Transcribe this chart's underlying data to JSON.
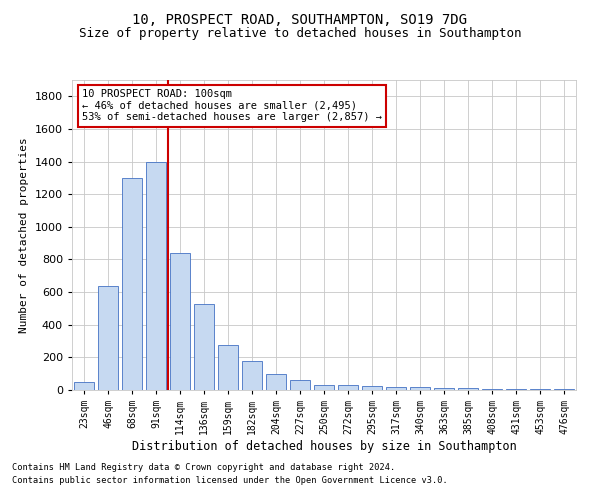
{
  "title_line1": "10, PROSPECT ROAD, SOUTHAMPTON, SO19 7DG",
  "title_line2": "Size of property relative to detached houses in Southampton",
  "xlabel": "Distribution of detached houses by size in Southampton",
  "ylabel": "Number of detached properties",
  "categories": [
    "23sqm",
    "46sqm",
    "68sqm",
    "91sqm",
    "114sqm",
    "136sqm",
    "159sqm",
    "182sqm",
    "204sqm",
    "227sqm",
    "250sqm",
    "272sqm",
    "295sqm",
    "317sqm",
    "340sqm",
    "363sqm",
    "385sqm",
    "408sqm",
    "431sqm",
    "453sqm",
    "476sqm"
  ],
  "values": [
    50,
    640,
    1300,
    1400,
    840,
    525,
    275,
    175,
    100,
    60,
    30,
    30,
    25,
    20,
    20,
    10,
    10,
    5,
    5,
    5,
    5
  ],
  "bar_color": "#c6d9f1",
  "bar_edge_color": "#4472c4",
  "vline_x_index": 3,
  "vline_color": "#cc0000",
  "ylim": [
    0,
    1900
  ],
  "yticks": [
    0,
    200,
    400,
    600,
    800,
    1000,
    1200,
    1400,
    1600,
    1800
  ],
  "annotation_text": "10 PROSPECT ROAD: 100sqm\n← 46% of detached houses are smaller (2,495)\n53% of semi-detached houses are larger (2,857) →",
  "annotation_box_color": "#ffffff",
  "annotation_box_edge": "#cc0000",
  "footnote_line1": "Contains HM Land Registry data © Crown copyright and database right 2024.",
  "footnote_line2": "Contains public sector information licensed under the Open Government Licence v3.0.",
  "title_fontsize": 10,
  "subtitle_fontsize": 9,
  "bar_width": 0.8,
  "grid_color": "#c8c8c8",
  "background_color": "#ffffff"
}
